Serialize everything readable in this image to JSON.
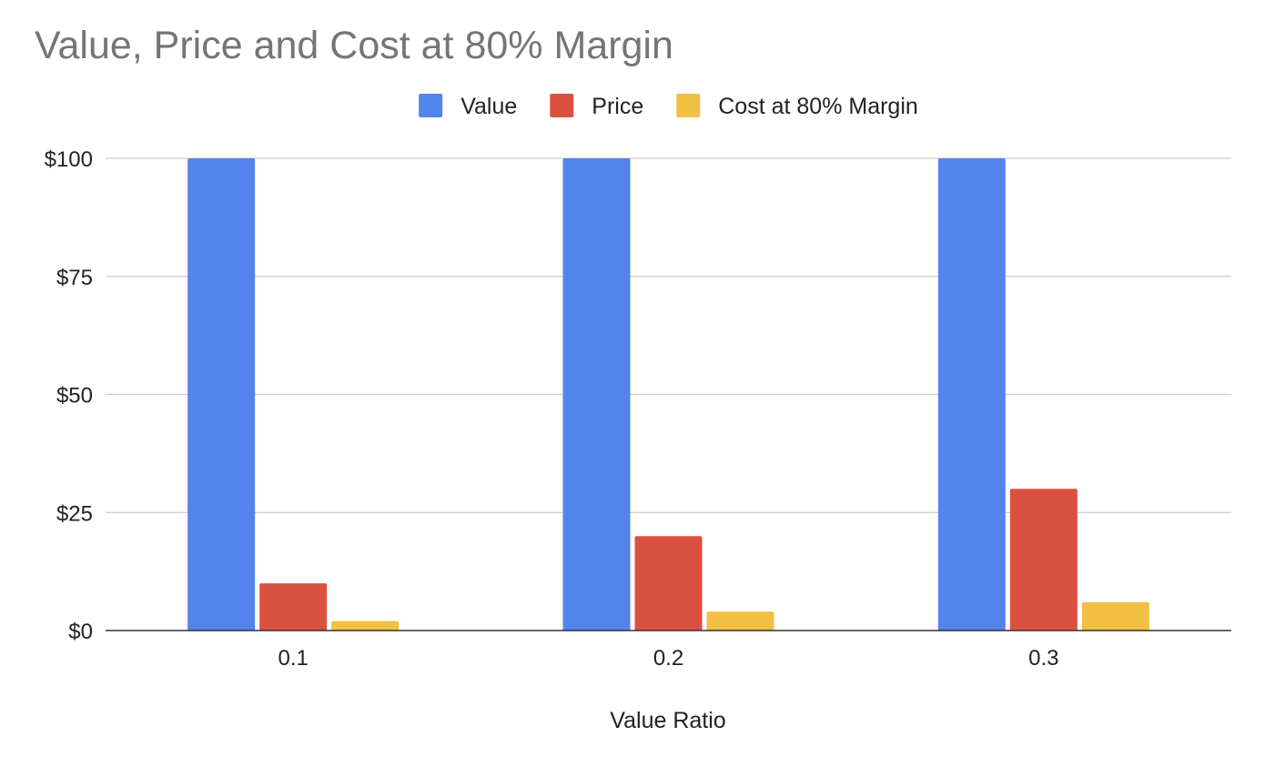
{
  "chart_data": {
    "type": "bar",
    "title": "Value, Price and Cost at 80% Margin",
    "xlabel": "Value Ratio",
    "ylabel": "",
    "categories": [
      "0.1",
      "0.2",
      "0.3"
    ],
    "series": [
      {
        "name": "Value",
        "color": "#5384EC",
        "values": [
          100,
          100,
          100
        ]
      },
      {
        "name": "Price",
        "color": "#DB5140",
        "values": [
          10,
          20,
          30
        ]
      },
      {
        "name": "Cost at 80% Margin",
        "color": "#F2C043",
        "values": [
          2,
          4,
          6
        ]
      }
    ],
    "ylim": [
      0,
      100
    ],
    "yticks": [
      0,
      25,
      50,
      75,
      100
    ],
    "ytick_labels": [
      "$0",
      "$25",
      "$50",
      "$75",
      "$100"
    ],
    "grid": true,
    "legend_position": "top-center"
  }
}
